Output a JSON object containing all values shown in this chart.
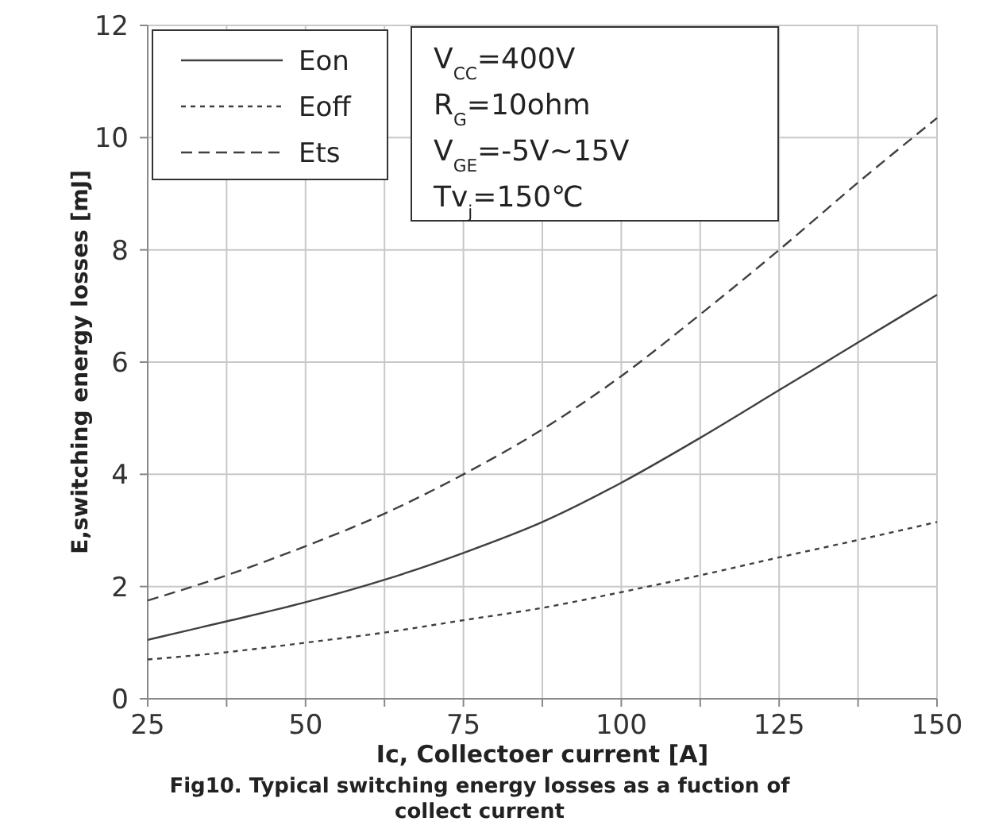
{
  "chart_data": {
    "type": "line",
    "title": "Fig10. Typical switching energy losses as a fuction of collect current",
    "xlabel": "Ic, Collectoer current [A]",
    "ylabel": "E,switching energy losses [mJ]",
    "x": [
      25,
      37.5,
      50,
      62.5,
      75,
      87.5,
      100,
      112.5,
      125,
      137.5,
      150
    ],
    "series": [
      {
        "name": "Eon",
        "color": "#404040",
        "line_style": "solid",
        "values": [
          1.05,
          1.38,
          1.72,
          2.12,
          2.6,
          3.15,
          3.85,
          4.65,
          5.5,
          6.35,
          7.2
        ]
      },
      {
        "name": "Eoff",
        "color": "#404040",
        "line_style": "dotted",
        "values": [
          0.7,
          0.83,
          1.0,
          1.18,
          1.4,
          1.62,
          1.9,
          2.2,
          2.52,
          2.83,
          3.15
        ]
      },
      {
        "name": "Ets",
        "color": "#404040",
        "line_style": "dashed",
        "values": [
          1.75,
          2.2,
          2.72,
          3.3,
          4.0,
          4.8,
          5.75,
          6.85,
          8.0,
          9.2,
          10.35
        ]
      }
    ],
    "xlim": [
      25,
      150
    ],
    "xticks": [
      25,
      {
        "value": 37.5,
        "label": null
      },
      50,
      {
        "value": 62.5,
        "label": null
      },
      75,
      {
        "value": 87.5,
        "label": null
      },
      100,
      {
        "value": 112.5,
        "label": null
      },
      125,
      {
        "value": 137.5,
        "label": null
      },
      150
    ],
    "ylim": [
      0,
      12
    ],
    "yticks": [
      0,
      2,
      4,
      6,
      8,
      10,
      12
    ],
    "grid": true,
    "legend": "top left",
    "marker": "none",
    "annotations": [
      "V$_{CC}$=400V",
      "R$_{G}$=10ohm",
      "V$_{GE}$=-5V~15V",
      "Tv$_{j}$=150℃"
    ]
  }
}
